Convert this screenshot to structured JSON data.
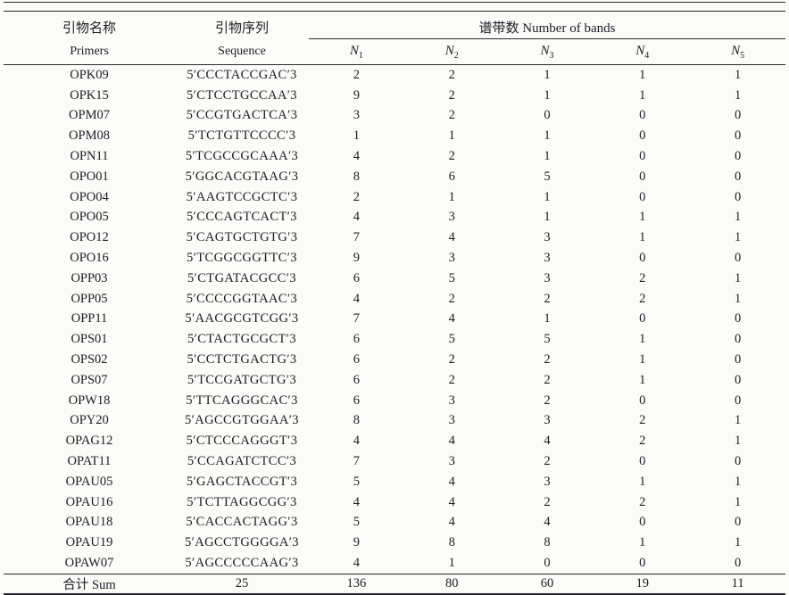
{
  "colors": {
    "background": "#fbfbf8",
    "text": "#1c1c27",
    "rule": "#2a2a33"
  },
  "table": {
    "header": {
      "col_primers": {
        "zh": "引物名称",
        "en": "Primers"
      },
      "col_sequence": {
        "zh": "引物序列",
        "en": "Sequence"
      },
      "bands_group": "谱带数 Number of bands",
      "band_cols": [
        {
          "base": "N",
          "sub": "1"
        },
        {
          "base": "N",
          "sub": "2"
        },
        {
          "base": "N",
          "sub": "3"
        },
        {
          "base": "N",
          "sub": "4"
        },
        {
          "base": "N",
          "sub": "5"
        }
      ]
    },
    "rows": [
      {
        "primer": "OPK09",
        "sequence": "5′CCCTACCGAC′3",
        "bands": [
          "2",
          "2",
          "1",
          "1",
          "1"
        ]
      },
      {
        "primer": "OPK15",
        "sequence": "5′CTCCTGCCAA′3",
        "bands": [
          "9",
          "2",
          "1",
          "1",
          "1"
        ]
      },
      {
        "primer": "OPM07",
        "sequence": "5′CCGTGACTCA′3",
        "bands": [
          "3",
          "2",
          "0",
          "0",
          "0"
        ]
      },
      {
        "primer": "OPM08",
        "sequence": "5′TCTGTTCCCC′3",
        "bands": [
          "1",
          "1",
          "1",
          "0",
          "0"
        ]
      },
      {
        "primer": "OPN11",
        "sequence": "5′TCGCCGCAAA′3",
        "bands": [
          "4",
          "2",
          "1",
          "0",
          "0"
        ]
      },
      {
        "primer": "OPO01",
        "sequence": "5′GGCACGTAAG′3",
        "bands": [
          "8",
          "6",
          "5",
          "0",
          "0"
        ]
      },
      {
        "primer": "OPO04",
        "sequence": "5′AAGTCCGCTC′3",
        "bands": [
          "2",
          "1",
          "1",
          "0",
          "0"
        ]
      },
      {
        "primer": "OPO05",
        "sequence": "5′CCCAGTCACT′3",
        "bands": [
          "4",
          "3",
          "1",
          "1",
          "1"
        ]
      },
      {
        "primer": "OPO12",
        "sequence": "5′CAGTGCTGTG′3",
        "bands": [
          "7",
          "4",
          "3",
          "1",
          "1"
        ]
      },
      {
        "primer": "OPO16",
        "sequence": "5′TCGGCGGTTC′3",
        "bands": [
          "9",
          "3",
          "3",
          "0",
          "0"
        ]
      },
      {
        "primer": "OPP03",
        "sequence": "5′CTGATACGCC′3",
        "bands": [
          "6",
          "5",
          "3",
          "2",
          "1"
        ]
      },
      {
        "primer": "OPP05",
        "sequence": "5′CCCCGGTAAC′3",
        "bands": [
          "4",
          "2",
          "2",
          "2",
          "1"
        ]
      },
      {
        "primer": "OPP11",
        "sequence": "5′AACGCGTCGG′3",
        "bands": [
          "7",
          "4",
          "1",
          "0",
          "0"
        ]
      },
      {
        "primer": "OPS01",
        "sequence": "5′CTACTGCGCT′3",
        "bands": [
          "6",
          "5",
          "5",
          "1",
          "0"
        ]
      },
      {
        "primer": "OPS02",
        "sequence": "5′CCTCTGACTG′3",
        "bands": [
          "6",
          "2",
          "2",
          "1",
          "0"
        ]
      },
      {
        "primer": "OPS07",
        "sequence": "5′TCCGATGCTG′3",
        "bands": [
          "6",
          "2",
          "2",
          "1",
          "0"
        ]
      },
      {
        "primer": "OPW18",
        "sequence": "5′TTCAGGGCAC′3",
        "bands": [
          "6",
          "3",
          "2",
          "0",
          "0"
        ]
      },
      {
        "primer": "OPY20",
        "sequence": "5′AGCCGTGGAA′3",
        "bands": [
          "8",
          "3",
          "3",
          "2",
          "1"
        ]
      },
      {
        "primer": "OPAG12",
        "sequence": "5′CTCCCAGGGT′3",
        "bands": [
          "4",
          "4",
          "4",
          "2",
          "1"
        ]
      },
      {
        "primer": "OPAT11",
        "sequence": "5′CCAGATCTCC′3",
        "bands": [
          "7",
          "3",
          "2",
          "0",
          "0"
        ]
      },
      {
        "primer": "OPAU05",
        "sequence": "5′GAGCTACCGT′3",
        "bands": [
          "5",
          "4",
          "3",
          "1",
          "1"
        ]
      },
      {
        "primer": "OPAU16",
        "sequence": "5′TCTTAGGCGG′3",
        "bands": [
          "4",
          "4",
          "2",
          "2",
          "1"
        ]
      },
      {
        "primer": "OPAU18",
        "sequence": "5′CACCACTAGG′3",
        "bands": [
          "5",
          "4",
          "4",
          "0",
          "0"
        ]
      },
      {
        "primer": "OPAU19",
        "sequence": "5′AGCCTGGGGA′3",
        "bands": [
          "9",
          "8",
          "8",
          "1",
          "1"
        ]
      },
      {
        "primer": "OPAW07",
        "sequence": "5′AGCCCCCAAG′3",
        "bands": [
          "4",
          "1",
          "0",
          "0",
          "0"
        ]
      }
    ],
    "footer": {
      "label": "合计 Sum",
      "sequence_total": "25",
      "bands": [
        "136",
        "80",
        "60",
        "19",
        "11"
      ]
    }
  }
}
